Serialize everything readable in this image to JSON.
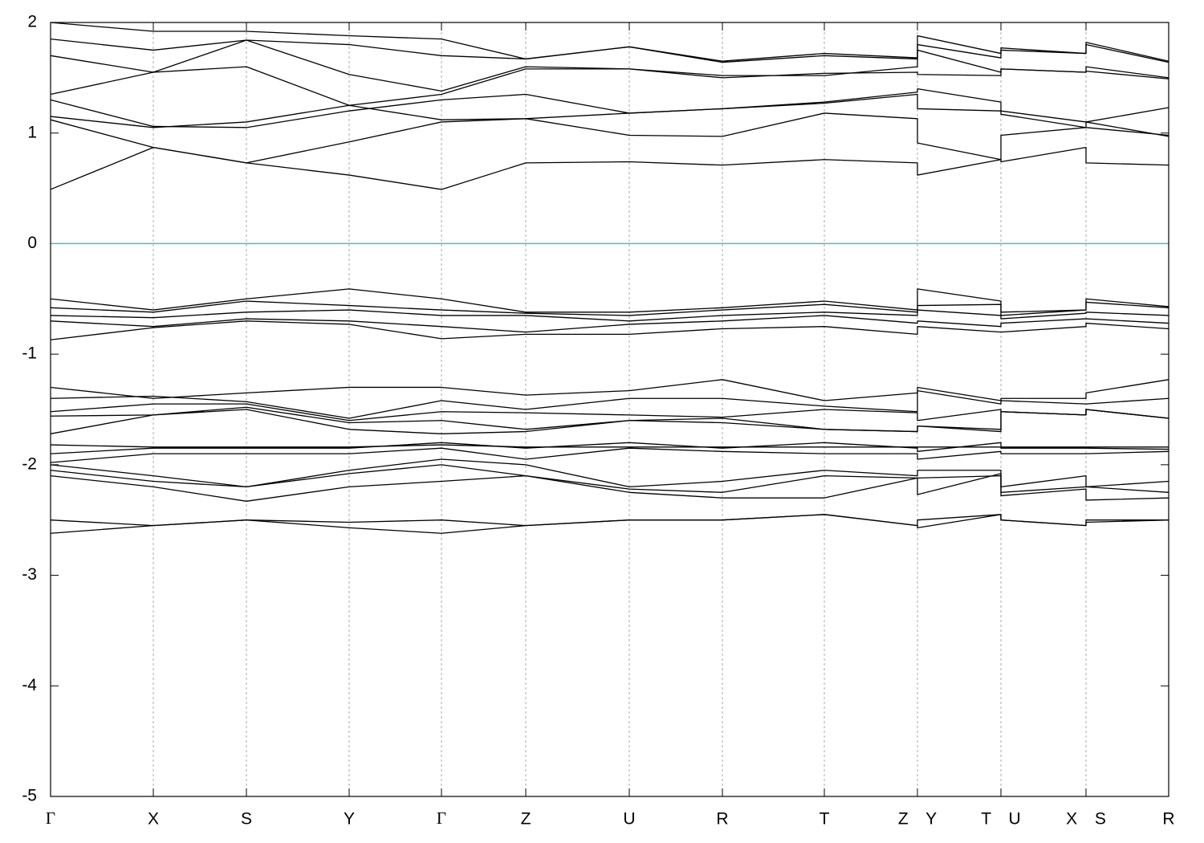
{
  "chart_data": {
    "type": "line",
    "color": "#000000",
    "x": [
      0,
      1.28,
      2.44,
      3.72,
      4.87,
      5.92,
      7.21,
      8.37,
      9.64,
      10.8,
      10.8,
      11.84,
      11.84,
      12.9,
      12.9,
      13.93
    ],
    "xlim": [
      0,
      13.93
    ],
    "xticks": [
      {
        "value": 0,
        "label": "Γ"
      },
      {
        "value": 1.28,
        "label": "X"
      },
      {
        "value": 2.44,
        "label": "S"
      },
      {
        "value": 3.72,
        "label": "Y"
      },
      {
        "value": 4.87,
        "label": "Γ"
      },
      {
        "value": 5.92,
        "label": "Z"
      },
      {
        "value": 7.21,
        "label": "U"
      },
      {
        "value": 8.37,
        "label": "R"
      },
      {
        "value": 9.64,
        "label": "T"
      },
      {
        "value": 10.8,
        "label": "Z Y"
      },
      {
        "value": 11.84,
        "label": "T U"
      },
      {
        "value": 12.9,
        "label": "X S"
      },
      {
        "value": 13.93,
        "label": "R"
      }
    ],
    "ylim": [
      -5,
      2
    ],
    "yticks": [
      -5,
      -4,
      -3,
      -2,
      -1,
      0,
      1,
      2
    ],
    "grid": "x",
    "hline": 0,
    "hline_color": "#5fb3c8",
    "series": [
      {
        "values": [
          0.49,
          0.87,
          0.73,
          0.62,
          0.49,
          0.73,
          0.74,
          0.71,
          0.76,
          0.73,
          0.62,
          0.76,
          0.74,
          0.87,
          0.73,
          0.71
        ]
      },
      {
        "values": [
          1.12,
          0.87,
          0.73,
          0.92,
          1.1,
          1.13,
          0.98,
          0.97,
          1.18,
          1.13,
          0.91,
          0.76,
          0.98,
          1.05,
          1.1,
          0.97
        ]
      },
      {
        "values": [
          1.15,
          1.05,
          1.1,
          1.25,
          1.12,
          1.13,
          1.18,
          1.22,
          1.27,
          1.35,
          1.22,
          1.2,
          1.17,
          1.05,
          1.05,
          0.98
        ]
      },
      {
        "values": [
          1.3,
          1.06,
          1.05,
          1.2,
          1.3,
          1.35,
          1.18,
          1.22,
          1.28,
          1.37,
          1.4,
          1.28,
          1.2,
          1.1,
          1.1,
          1.23
        ]
      },
      {
        "values": [
          1.35,
          1.55,
          1.6,
          1.25,
          1.35,
          1.58,
          1.58,
          1.5,
          1.54,
          1.55,
          1.53,
          1.52,
          1.58,
          1.55,
          1.6,
          1.5
        ]
      },
      {
        "values": [
          1.7,
          1.55,
          1.84,
          1.53,
          1.38,
          1.6,
          1.58,
          1.52,
          1.52,
          1.6,
          1.75,
          1.55,
          1.58,
          1.55,
          1.56,
          1.49
        ]
      },
      {
        "values": [
          1.85,
          1.75,
          1.84,
          1.8,
          1.7,
          1.67,
          1.78,
          1.64,
          1.7,
          1.67,
          1.8,
          1.68,
          1.77,
          1.72,
          1.8,
          1.64
        ]
      },
      {
        "values": [
          2.0,
          1.92,
          1.92,
          1.88,
          1.85,
          1.67,
          1.78,
          1.65,
          1.72,
          1.68,
          1.88,
          1.72,
          1.75,
          1.72,
          1.82,
          1.65
        ]
      },
      {
        "values": [
          -0.5,
          -0.6,
          -0.5,
          -0.41,
          -0.5,
          -0.62,
          -0.62,
          -0.58,
          -0.52,
          -0.6,
          -0.41,
          -0.52,
          -0.62,
          -0.6,
          -0.5,
          -0.57
        ]
      },
      {
        "values": [
          -0.58,
          -0.62,
          -0.52,
          -0.56,
          -0.6,
          -0.63,
          -0.65,
          -0.6,
          -0.55,
          -0.62,
          -0.56,
          -0.55,
          -0.65,
          -0.6,
          -0.53,
          -0.58
        ]
      },
      {
        "values": [
          -0.65,
          -0.67,
          -0.62,
          -0.6,
          -0.65,
          -0.65,
          -0.7,
          -0.65,
          -0.62,
          -0.65,
          -0.6,
          -0.65,
          -0.68,
          -0.63,
          -0.62,
          -0.65
        ]
      },
      {
        "values": [
          -0.7,
          -0.75,
          -0.68,
          -0.7,
          -0.75,
          -0.8,
          -0.73,
          -0.7,
          -0.65,
          -0.72,
          -0.7,
          -0.75,
          -0.72,
          -0.68,
          -0.68,
          -0.72
        ]
      },
      {
        "values": [
          -0.87,
          -0.76,
          -0.7,
          -0.73,
          -0.86,
          -0.82,
          -0.82,
          -0.77,
          -0.75,
          -0.82,
          -0.75,
          -0.8,
          -0.8,
          -0.75,
          -0.72,
          -0.77
        ]
      },
      {
        "values": [
          -1.3,
          -1.4,
          -1.35,
          -1.3,
          -1.3,
          -1.37,
          -1.33,
          -1.23,
          -1.42,
          -1.35,
          -1.3,
          -1.42,
          -1.4,
          -1.4,
          -1.35,
          -1.23
        ]
      },
      {
        "values": [
          -1.4,
          -1.38,
          -1.43,
          -1.58,
          -1.42,
          -1.5,
          -1.4,
          -1.4,
          -1.47,
          -1.52,
          -1.33,
          -1.45,
          -1.42,
          -1.45,
          -1.45,
          -1.4
        ]
      },
      {
        "values": [
          -1.52,
          -1.45,
          -1.45,
          -1.6,
          -1.52,
          -1.53,
          -1.55,
          -1.57,
          -1.5,
          -1.53,
          -1.6,
          -1.5,
          -1.52,
          -1.55,
          -1.5,
          -1.58
        ]
      },
      {
        "values": [
          -1.56,
          -1.55,
          -1.48,
          -1.62,
          -1.6,
          -1.68,
          -1.6,
          -1.58,
          -1.68,
          -1.7,
          -1.65,
          -1.68,
          -1.52,
          -1.55,
          -1.5,
          -1.58
        ]
      },
      {
        "values": [
          -1.72,
          -1.55,
          -1.5,
          -1.68,
          -1.72,
          -1.7,
          -1.6,
          -1.62,
          -1.68,
          -1.7,
          -1.65,
          -1.7,
          -1.52,
          -1.55,
          -1.5,
          -1.58
        ]
      },
      {
        "values": [
          -1.82,
          -1.84,
          -1.84,
          -1.84,
          -1.82,
          -1.84,
          -1.84,
          -1.84,
          -1.84,
          -1.84,
          -1.84,
          -1.84,
          -1.84,
          -1.84,
          -1.84,
          -1.84
        ]
      },
      {
        "values": [
          -1.9,
          -1.85,
          -1.85,
          -1.85,
          -1.8,
          -1.85,
          -1.8,
          -1.85,
          -1.8,
          -1.85,
          -1.88,
          -1.8,
          -1.85,
          -1.85,
          -1.85,
          -1.86
        ]
      },
      {
        "values": [
          -1.98,
          -1.9,
          -1.9,
          -1.9,
          -1.85,
          -1.95,
          -1.85,
          -1.88,
          -1.9,
          -1.9,
          -1.95,
          -1.88,
          -1.9,
          -1.9,
          -1.9,
          -1.88
        ]
      },
      {
        "values": [
          -2.0,
          -2.1,
          -2.2,
          -2.05,
          -1.95,
          -2.0,
          -2.2,
          -2.15,
          -2.05,
          -2.1,
          -2.05,
          -2.05,
          -2.2,
          -2.1,
          -2.2,
          -2.15
        ]
      },
      {
        "values": [
          -2.05,
          -2.15,
          -2.2,
          -2.08,
          -2.0,
          -2.1,
          -2.22,
          -2.25,
          -2.1,
          -2.12,
          -2.12,
          -2.1,
          -2.25,
          -2.2,
          -2.2,
          -2.25
        ]
      },
      {
        "values": [
          -2.1,
          -2.2,
          -2.33,
          -2.2,
          -2.15,
          -2.1,
          -2.25,
          -2.3,
          -2.3,
          -2.12,
          -2.27,
          -2.08,
          -2.28,
          -2.22,
          -2.32,
          -2.3
        ]
      },
      {
        "values": [
          -2.5,
          -2.55,
          -2.5,
          -2.52,
          -2.5,
          -2.55,
          -2.5,
          -2.5,
          -2.45,
          -2.55,
          -2.5,
          -2.45,
          -2.5,
          -2.55,
          -2.5,
          -2.5
        ]
      },
      {
        "values": [
          -2.62,
          -2.55,
          -2.5,
          -2.57,
          -2.62,
          -2.55,
          -2.5,
          -2.5,
          -2.45,
          -2.55,
          -2.57,
          -2.45,
          -2.5,
          -2.55,
          -2.52,
          -2.5
        ]
      }
    ]
  }
}
